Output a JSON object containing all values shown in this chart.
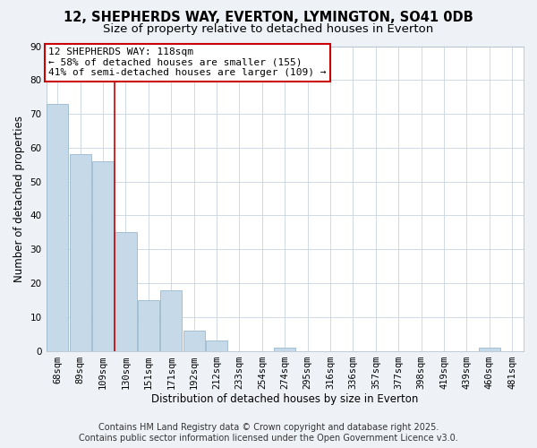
{
  "title": "12, SHEPHERDS WAY, EVERTON, LYMINGTON, SO41 0DB",
  "subtitle": "Size of property relative to detached houses in Everton",
  "xlabel": "Distribution of detached houses by size in Everton",
  "ylabel": "Number of detached properties",
  "categories": [
    "68sqm",
    "89sqm",
    "109sqm",
    "130sqm",
    "151sqm",
    "171sqm",
    "192sqm",
    "212sqm",
    "233sqm",
    "254sqm",
    "274sqm",
    "295sqm",
    "316sqm",
    "336sqm",
    "357sqm",
    "377sqm",
    "398sqm",
    "419sqm",
    "439sqm",
    "460sqm",
    "481sqm"
  ],
  "values": [
    73,
    58,
    56,
    35,
    15,
    18,
    6,
    3,
    0,
    0,
    1,
    0,
    0,
    0,
    0,
    0,
    0,
    0,
    0,
    1,
    0
  ],
  "bar_color": "#c6d9e8",
  "bar_edge_color": "#9ab8cc",
  "vline_color": "#cc0000",
  "ylim": [
    0,
    90
  ],
  "yticks": [
    0,
    10,
    20,
    30,
    40,
    50,
    60,
    70,
    80,
    90
  ],
  "annotation_box_title": "12 SHEPHERDS WAY: 118sqm",
  "annotation_line1": "← 58% of detached houses are smaller (155)",
  "annotation_line2": "41% of semi-detached houses are larger (109) →",
  "annotation_box_color": "#ffffff",
  "annotation_box_edge": "#cc0000",
  "footer_line1": "Contains HM Land Registry data © Crown copyright and database right 2025.",
  "footer_line2": "Contains public sector information licensed under the Open Government Licence v3.0.",
  "background_color": "#eef2f7",
  "plot_bg_color": "#ffffff",
  "grid_color": "#c8d4e0",
  "title_fontsize": 10.5,
  "subtitle_fontsize": 9.5,
  "label_fontsize": 8.5,
  "tick_fontsize": 7.5,
  "annotation_fontsize": 8,
  "footer_fontsize": 7
}
